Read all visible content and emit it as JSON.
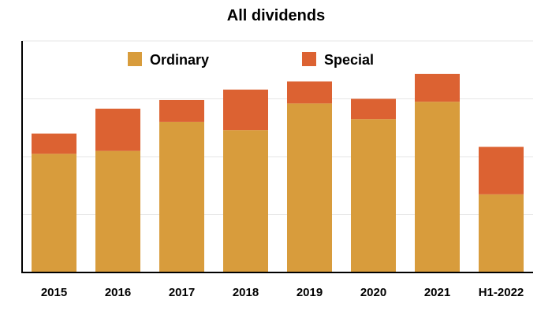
{
  "chart_data": {
    "type": "bar",
    "stacked": true,
    "title": "All dividends",
    "xlabel": "",
    "ylabel": "",
    "categories": [
      "2015",
      "2016",
      "2017",
      "2018",
      "2019",
      "2020",
      "2021",
      "H1-2022"
    ],
    "series": [
      {
        "name": "Ordinary",
        "color": "#d89c3c",
        "values": [
          2.05,
          2.1,
          2.6,
          2.46,
          2.92,
          2.65,
          2.95,
          1.35
        ]
      },
      {
        "name": "Special",
        "color": "#dc6232",
        "values": [
          0.35,
          0.73,
          0.38,
          0.7,
          0.38,
          0.35,
          0.48,
          0.82
        ]
      }
    ],
    "ylim": [
      0,
      4
    ],
    "grid": true,
    "legend": "top"
  }
}
